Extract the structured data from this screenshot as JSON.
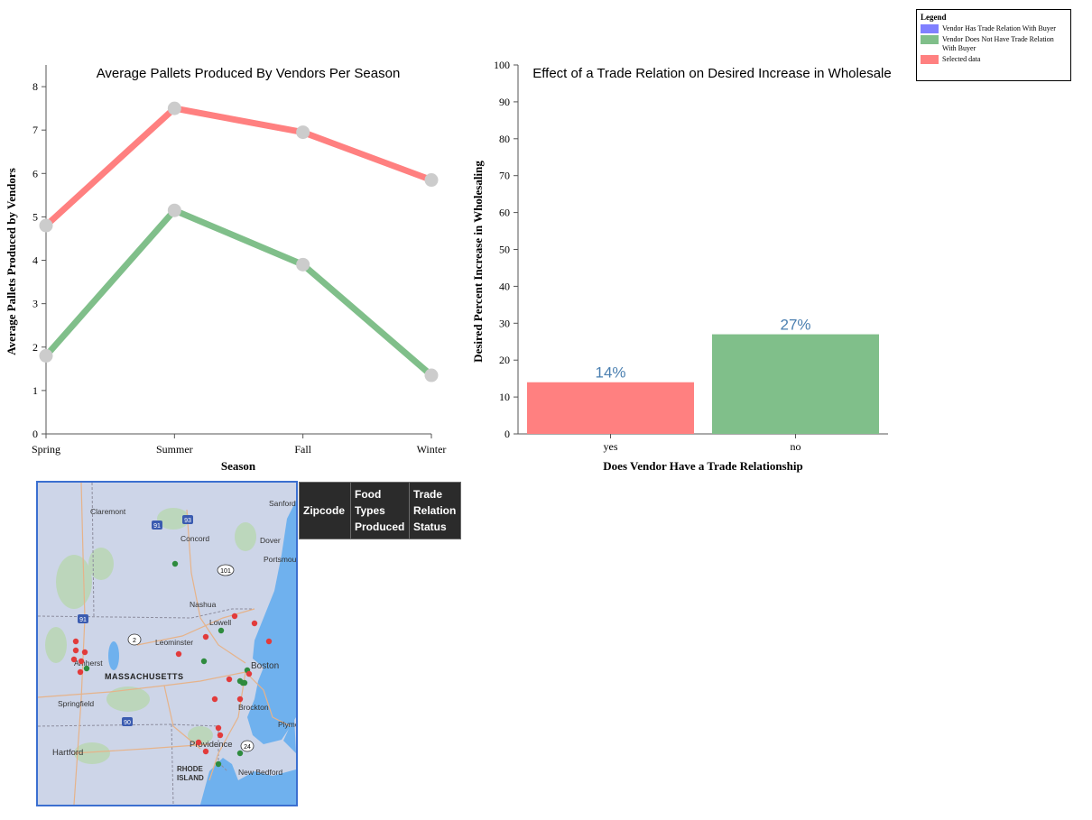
{
  "chart_data": [
    {
      "type": "line",
      "title": "Average Pallets Produced By Vendors Per Season",
      "xlabel": "Season",
      "ylabel": "Average Pallets Produced by Vendors",
      "categories": [
        "Spring",
        "Summer",
        "Fall",
        "Winter"
      ],
      "ylim": [
        0,
        8.5
      ],
      "yticks": [
        0,
        1,
        2,
        3,
        4,
        5,
        6,
        7,
        8
      ],
      "grid": false,
      "series": [
        {
          "color": "#ff8080",
          "values": [
            4.8,
            7.5,
            6.95,
            5.85
          ]
        },
        {
          "color": "#80bf8a",
          "values": [
            1.8,
            5.15,
            3.9,
            1.35
          ]
        }
      ]
    },
    {
      "type": "bar",
      "title": "Effect of a Trade Relation on Desired Increase in Wholesale",
      "xlabel": "Does Vendor Have a Trade Relationship",
      "ylabel": "Desired Percent Increase in Wholesaling",
      "categories": [
        "yes",
        "no"
      ],
      "values": [
        14,
        27
      ],
      "labels": [
        "14%",
        "27%"
      ],
      "colors": [
        "#ff8080",
        "#80bf8a"
      ],
      "ylim": [
        0,
        100
      ],
      "yticks": [
        0,
        10,
        20,
        30,
        40,
        50,
        60,
        70,
        80,
        90,
        100
      ],
      "grid": false
    }
  ],
  "legend": {
    "title": "Legend",
    "items": [
      {
        "label": "Vendor Has Trade Relation With Buyer",
        "color": "#8080ff"
      },
      {
        "label": "Vendor Does Not Have Trade Relation With Buyer",
        "color": "#80bf8a"
      },
      {
        "label": "Selected data",
        "color": "#ff8080"
      }
    ]
  },
  "map": {
    "labels": {
      "claremont": "Claremont",
      "concord": "Concord",
      "dover": "Dover",
      "sanford": "Sanford",
      "portsmouth": "Portsmouth",
      "nashua": "Nashua",
      "lowell": "Lowell",
      "leominster": "Leominster",
      "amherst": "Amherst",
      "massachusetts": "MASSACHUSETTS",
      "boston": "Boston",
      "springfield": "Springfield",
      "brockton": "Brockton",
      "providence": "Providence",
      "hartford": "Hartford",
      "rhode1": "RHODE",
      "rhode2": "ISLAND",
      "newbedford": "New Bedford",
      "plymouth": "Plymo"
    },
    "shields": {
      "i91": "91",
      "i93": "93",
      "us101": "101",
      "i91b": "91",
      "rt2": "2",
      "i90": "90",
      "rt24": "24"
    }
  },
  "table": {
    "headers": [
      "Zipcode",
      "Food Types Produced",
      "Trade Relation Status"
    ]
  }
}
